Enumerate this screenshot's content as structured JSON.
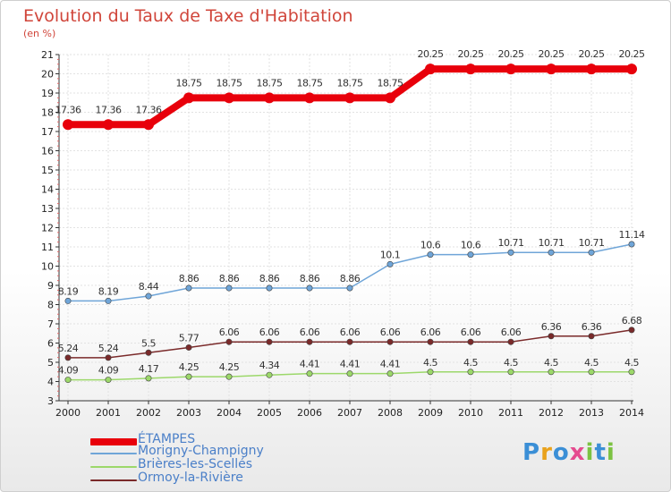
{
  "page": {
    "title": "Evolution du Taux de Taxe d'Habitation",
    "unit_label": "(en %)"
  },
  "chart_data": {
    "type": "line",
    "x": [
      2000,
      2001,
      2002,
      2003,
      2004,
      2005,
      2006,
      2007,
      2008,
      2009,
      2010,
      2011,
      2012,
      2013,
      2014
    ],
    "x_tick_labels": [
      "2000",
      "2001",
      "2002",
      "2003",
      "2004",
      "2005",
      "2006",
      "2007",
      "2008",
      "2009",
      "2010",
      "2011",
      "2012",
      "2013",
      "2014"
    ],
    "y_tick_labels": [
      "3",
      "4",
      "5",
      "6",
      "7",
      "8",
      "9",
      "10",
      "11",
      "12",
      "13",
      "14",
      "15",
      "16",
      "17",
      "18",
      "19",
      "20",
      "21"
    ],
    "ylim": [
      3,
      21
    ],
    "grid": true,
    "legend_position": "bottom-left",
    "series": [
      {
        "name": "ÉTAMPES",
        "color": "#e8000b",
        "values": [
          17.36,
          17.36,
          17.36,
          18.75,
          18.75,
          18.75,
          18.75,
          18.75,
          18.75,
          20.25,
          20.25,
          20.25,
          20.25,
          20.25,
          20.25
        ],
        "labels": [
          "17.36",
          "17.36",
          "17.36",
          "18.75",
          "18.75",
          "18.75",
          "18.75",
          "18.75",
          "18.75",
          "20.25",
          "20.25",
          "20.25",
          "20.25",
          "20.25",
          "20.25"
        ]
      },
      {
        "name": "Morigny-Champigny",
        "color": "#6fa5d8",
        "values": [
          8.19,
          8.19,
          8.44,
          8.86,
          8.86,
          8.86,
          8.86,
          8.86,
          10.1,
          10.6,
          10.6,
          10.71,
          10.71,
          10.71,
          11.14
        ],
        "labels": [
          "8.19",
          "8.19",
          "8.44",
          "8.86",
          "8.86",
          "8.86",
          "8.86",
          "8.86",
          "10.1",
          "10.6",
          "10.6",
          "10.71",
          "10.71",
          "10.71",
          "11.14"
        ]
      },
      {
        "name": "Brières-les-Scellés",
        "color": "#9cd86a",
        "values": [
          4.09,
          4.09,
          4.17,
          4.25,
          4.25,
          4.34,
          4.41,
          4.41,
          4.41,
          4.5,
          4.5,
          4.5,
          4.5,
          4.5,
          4.5
        ],
        "labels": [
          "4.09",
          "4.09",
          "4.17",
          "4.25",
          "4.25",
          "4.34",
          "4.41",
          "4.41",
          "4.41",
          "4.5",
          "4.5",
          "4.5",
          "4.5",
          "4.5",
          "4.5"
        ]
      },
      {
        "name": "Ormoy-la-Rivière",
        "color": "#7a2a2a",
        "values": [
          5.24,
          5.24,
          5.5,
          5.77,
          6.06,
          6.06,
          6.06,
          6.06,
          6.06,
          6.06,
          6.06,
          6.06,
          6.36,
          6.36,
          6.68
        ],
        "labels": [
          "5.24",
          "5.24",
          "5.5",
          "5.77",
          "6.06",
          "6.06",
          "6.06",
          "6.06",
          "6.06",
          "6.06",
          "6.06",
          "6.06",
          "6.36",
          "6.36",
          "6.68"
        ]
      }
    ]
  },
  "legend": {
    "items": [
      {
        "label": "ÉTAMPES",
        "color": "#e8000b"
      },
      {
        "label": "Morigny-Champigny",
        "color": "#6fa5d8"
      },
      {
        "label": "Brières-les-Scellés",
        "color": "#9cd86a"
      },
      {
        "label": "Ormoy-la-Rivière",
        "color": "#7a2a2a"
      }
    ]
  },
  "logo": {
    "letters": [
      "P",
      "r",
      "o",
      "x",
      "i",
      "t",
      "i"
    ],
    "colors": [
      "#3b8fd6",
      "#e9a21c",
      "#3b8fd6",
      "#e54b8f",
      "#7cc242",
      "#3b8fd6",
      "#7cc242"
    ]
  }
}
